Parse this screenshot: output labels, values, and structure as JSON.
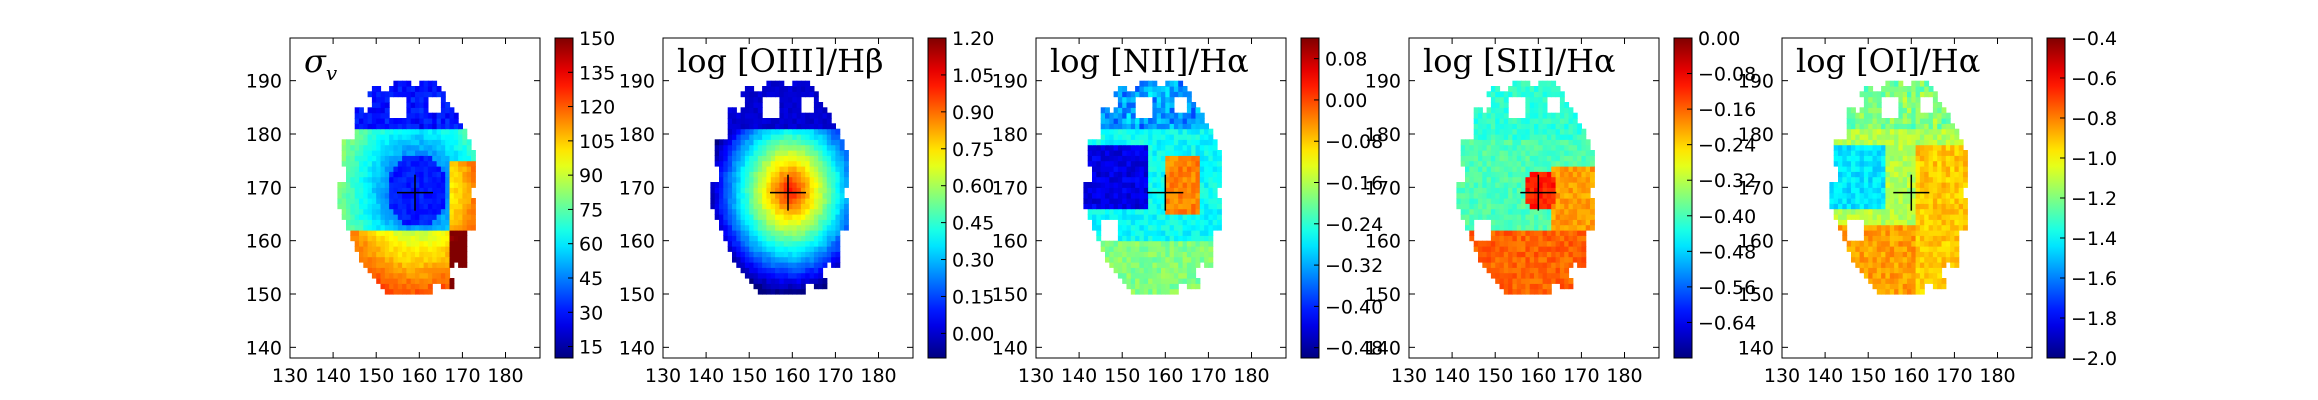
{
  "chart_data": [
    {
      "type": "heatmap",
      "title": "σ",
      "title_subscript": "v",
      "title_italic": true,
      "x_ticks": [
        130,
        140,
        150,
        160,
        170,
        180
      ],
      "y_ticks": [
        140,
        150,
        160,
        170,
        180,
        190
      ],
      "xlim": [
        130,
        188
      ],
      "ylim": [
        138,
        198
      ],
      "colorbar_ticks": [
        "15",
        "30",
        "45",
        "60",
        "75",
        "90",
        "105",
        "120",
        "135",
        "150"
      ],
      "colorbar_range": [
        10,
        150
      ],
      "center_marker": [
        159,
        169
      ],
      "colormap": "jet"
    },
    {
      "type": "heatmap",
      "title": "log [OIII]/Hβ",
      "x_ticks": [
        130,
        140,
        150,
        160,
        170,
        180
      ],
      "y_ticks": [
        140,
        150,
        160,
        170,
        180,
        190
      ],
      "xlim": [
        130,
        188
      ],
      "ylim": [
        138,
        198
      ],
      "colorbar_ticks": [
        "0.00",
        "0.15",
        "0.30",
        "0.45",
        "0.60",
        "0.75",
        "0.90",
        "1.05",
        "1.20"
      ],
      "colorbar_range": [
        -0.1,
        1.2
      ],
      "center_marker": [
        159,
        169
      ],
      "colormap": "jet"
    },
    {
      "type": "heatmap",
      "title": "log [NII]/Hα",
      "x_ticks": [
        130,
        140,
        150,
        160,
        170,
        180
      ],
      "y_ticks": [
        140,
        150,
        160,
        170,
        180,
        190
      ],
      "xlim": [
        130,
        188
      ],
      "ylim": [
        138,
        198
      ],
      "colorbar_ticks": [
        "−0.48",
        "−0.40",
        "−0.32",
        "−0.24",
        "−0.16",
        "−0.08",
        "0.00",
        "0.08"
      ],
      "colorbar_range": [
        -0.5,
        0.12
      ],
      "center_marker": [
        160,
        169
      ],
      "colormap": "jet"
    },
    {
      "type": "heatmap",
      "title": "log [SII]/Hα",
      "x_ticks": [
        130,
        140,
        150,
        160,
        170,
        180
      ],
      "y_ticks": [
        140,
        150,
        160,
        170,
        180,
        190
      ],
      "xlim": [
        130,
        188
      ],
      "ylim": [
        138,
        198
      ],
      "colorbar_ticks": [
        "−0.64",
        "−0.56",
        "−0.48",
        "−0.40",
        "−0.32",
        "−0.24",
        "−0.16",
        "−0.08",
        "0.00"
      ],
      "colorbar_range": [
        -0.72,
        0.0
      ],
      "center_marker": [
        160,
        169
      ],
      "colormap": "jet"
    },
    {
      "type": "heatmap",
      "title": "log [OI]/Hα",
      "x_ticks": [
        130,
        140,
        150,
        160,
        170,
        180
      ],
      "y_ticks": [
        140,
        150,
        160,
        170,
        180,
        190
      ],
      "xlim": [
        130,
        188
      ],
      "ylim": [
        138,
        198
      ],
      "colorbar_ticks": [
        "−2.0",
        "−1.8",
        "−1.6",
        "−1.4",
        "−1.2",
        "−1.0",
        "−0.8",
        "−0.6",
        "−0.4"
      ],
      "colorbar_range": [
        -2.0,
        -0.4
      ],
      "center_marker": [
        160,
        169
      ],
      "colormap": "jet"
    }
  ]
}
